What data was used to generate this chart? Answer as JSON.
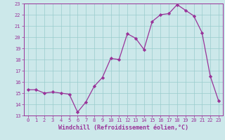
{
  "x": [
    0,
    1,
    2,
    3,
    4,
    5,
    6,
    7,
    8,
    9,
    10,
    11,
    12,
    13,
    14,
    15,
    16,
    17,
    18,
    19,
    20,
    21,
    22,
    23
  ],
  "y": [
    15.3,
    15.3,
    15.0,
    15.1,
    15.0,
    14.9,
    13.3,
    14.2,
    15.6,
    16.4,
    18.1,
    18.0,
    20.3,
    19.9,
    18.9,
    21.4,
    22.0,
    22.1,
    22.9,
    22.4,
    21.9,
    20.4,
    16.5,
    14.3
  ],
  "line_color": "#993399",
  "marker": "D",
  "markersize": 2.2,
  "linewidth": 0.9,
  "xlim": [
    -0.5,
    23.5
  ],
  "ylim": [
    13,
    23
  ],
  "yticks": [
    13,
    14,
    15,
    16,
    17,
    18,
    19,
    20,
    21,
    22,
    23
  ],
  "xticks": [
    0,
    1,
    2,
    3,
    4,
    5,
    6,
    7,
    8,
    9,
    10,
    11,
    12,
    13,
    14,
    15,
    16,
    17,
    18,
    19,
    20,
    21,
    22,
    23
  ],
  "xlabel": "Windchill (Refroidissement éolien,°C)",
  "background_color": "#cce8ea",
  "grid_color": "#99cccc",
  "tick_fontsize": 5.0,
  "label_fontsize": 6.0
}
